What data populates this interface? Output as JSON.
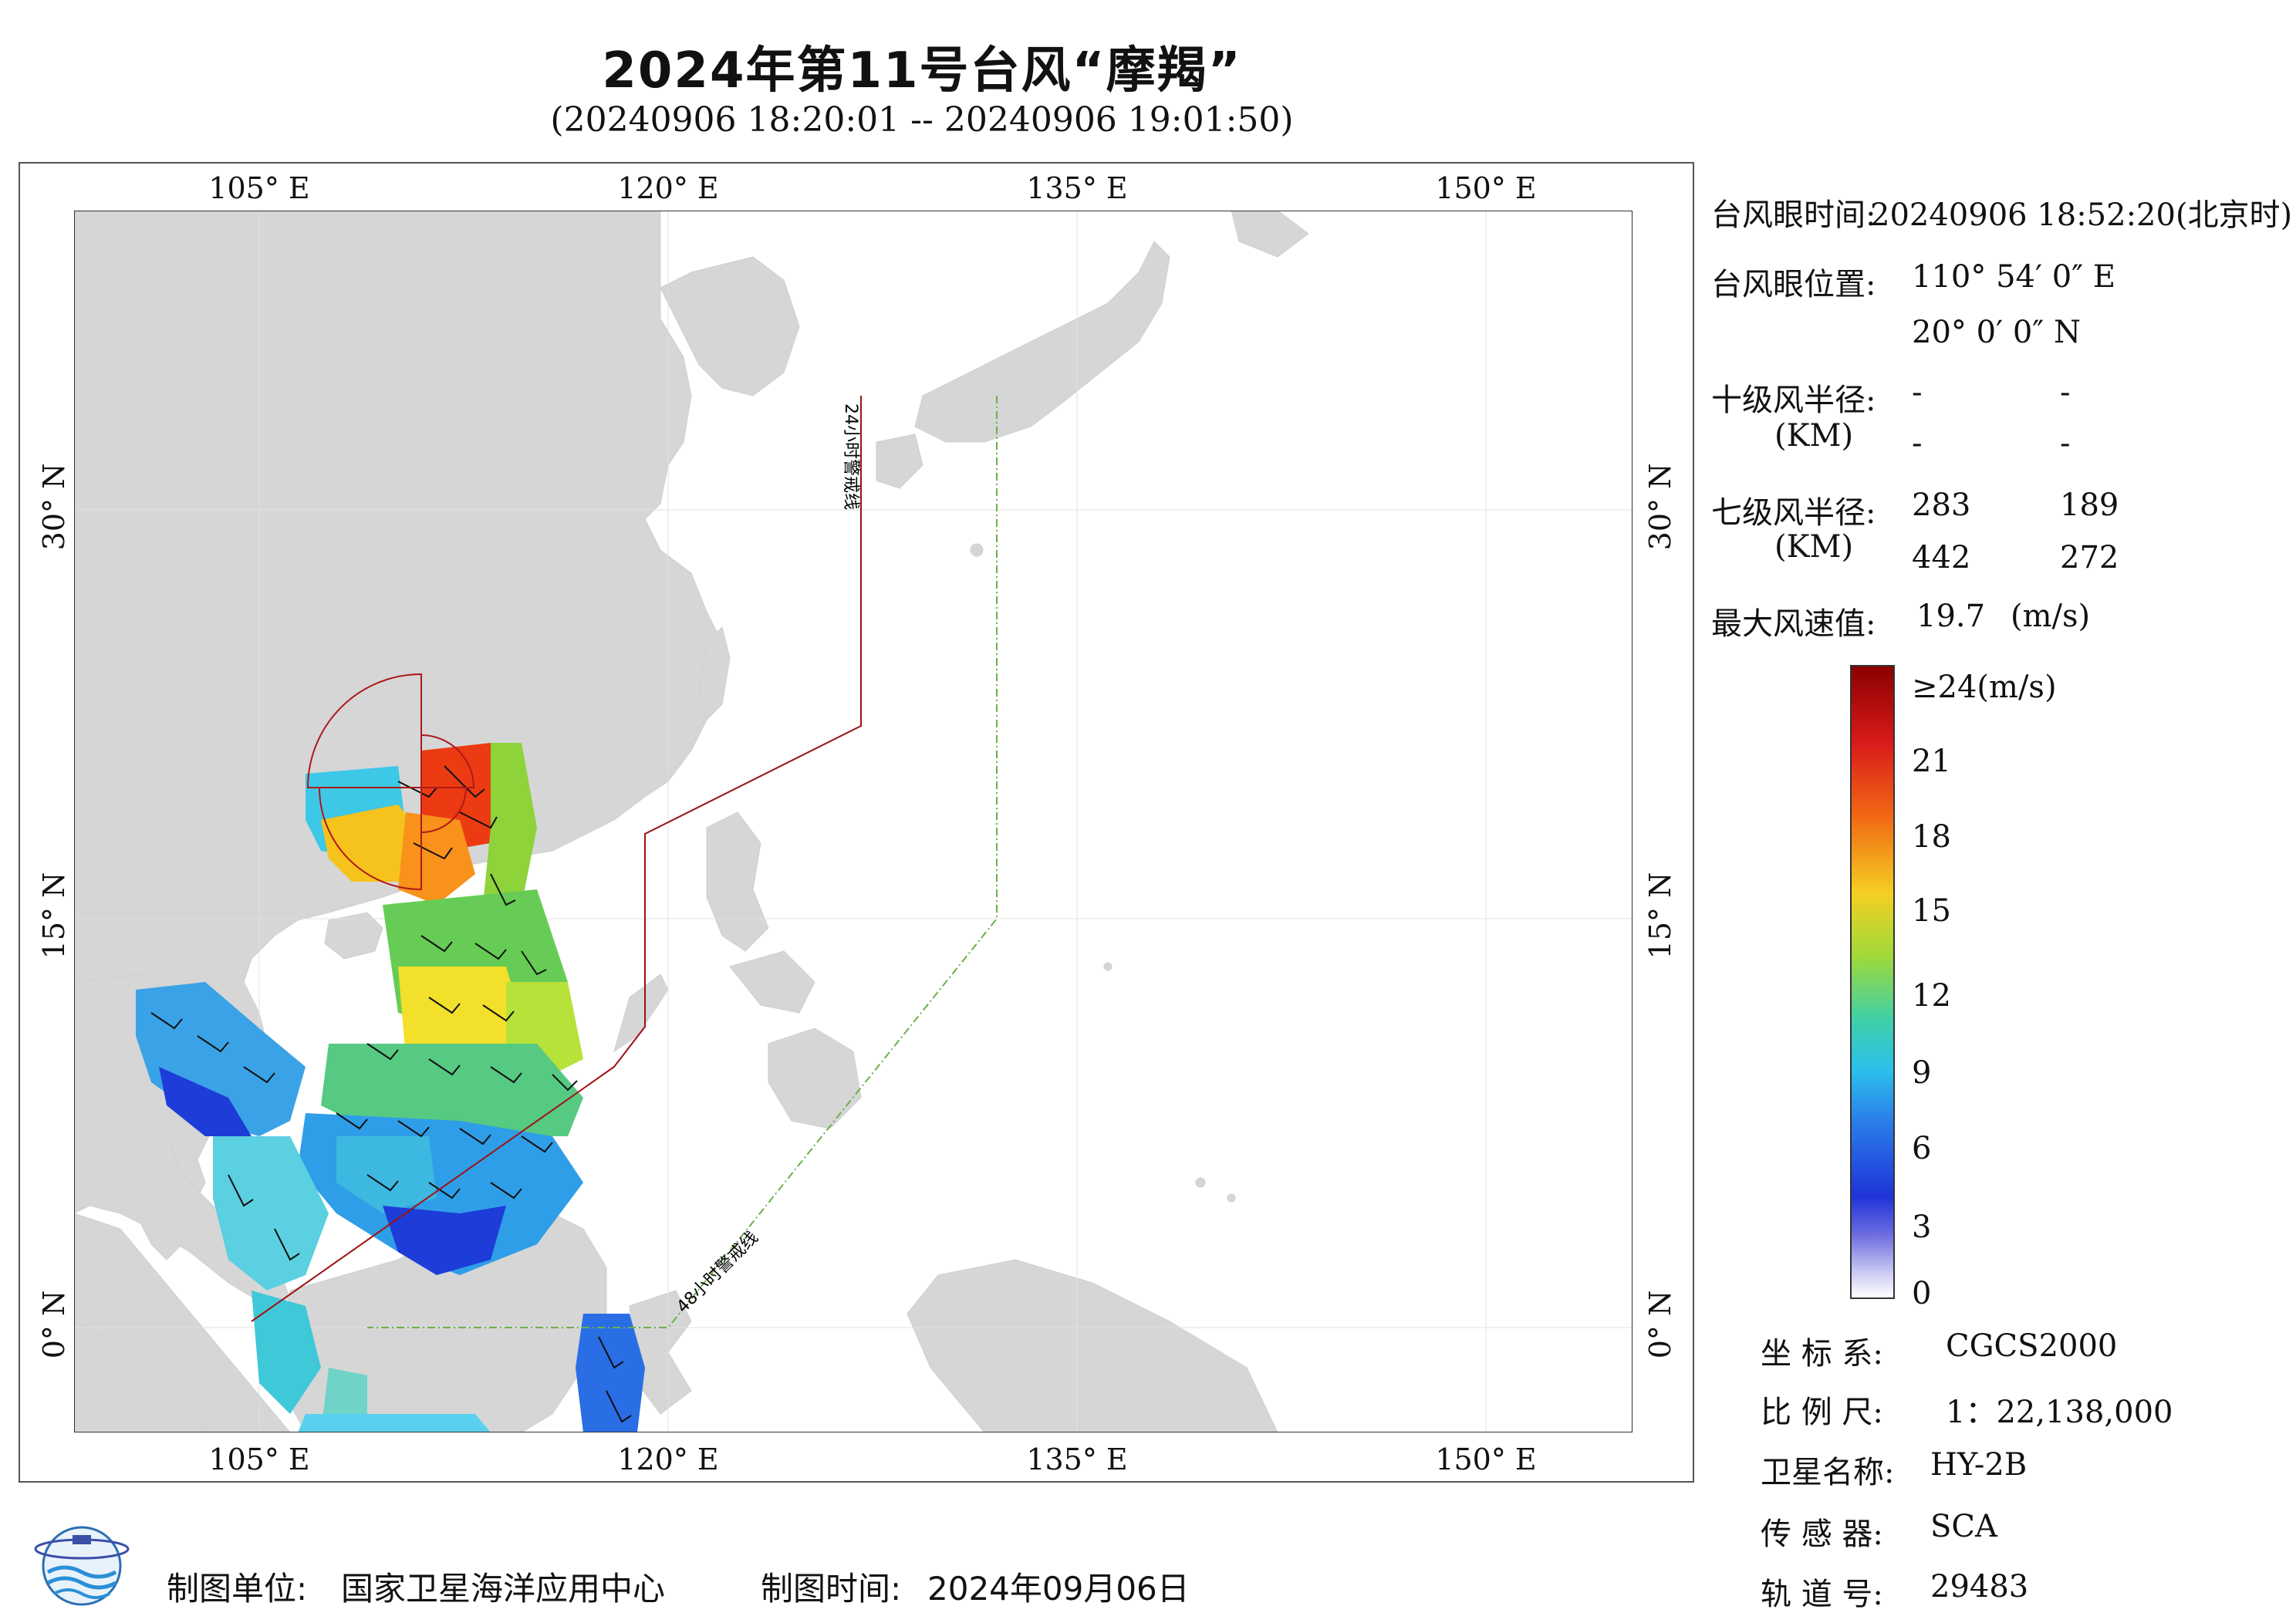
{
  "header": {
    "title": "2024年第11号台风“摩羯”",
    "subtitle": "(20240906 18:20:01 -- 20240906 19:01:50)"
  },
  "map": {
    "lon_ticks": [
      "105° E",
      "120° E",
      "135° E",
      "150° E"
    ],
    "lat_ticks": [
      "30° N",
      "15° N",
      "0° N"
    ],
    "line_24h_label": "24小时警戒线",
    "line_48h_label": "48小时警戒线",
    "colors": {
      "land": "#d6d6d6",
      "sea": "#ffffff",
      "line_24h": "#a01010",
      "line_48h": "#6ab04c"
    }
  },
  "info": {
    "eye_time_label": "台风眼时间:",
    "eye_time_value": "20240906 18:52:20(北京时)",
    "eye_pos_label": "台风眼位置:",
    "eye_lon": "110° 54′ 0″ E",
    "eye_lat": "20° 0′ 0″ N",
    "r10_label": "十级风半径:",
    "r10_unit": "(KM)",
    "r10_values": [
      "-",
      "-",
      "-",
      "-"
    ],
    "r7_label": "七级风半径:",
    "r7_unit": "(KM)",
    "r7_values": [
      "283",
      "189",
      "442",
      "272"
    ],
    "max_wind_label": "最大风速值:",
    "max_wind_value": "19.7",
    "max_wind_unit": "(m/s)"
  },
  "colorbar": {
    "labels": [
      "≥24(m/s)",
      "21",
      "18",
      "15",
      "12",
      "9",
      "6",
      "3",
      "0"
    ]
  },
  "meta": {
    "crs_label": "坐 标 系:",
    "crs_value": "CGCS2000",
    "scale_label": "比 例 尺:",
    "scale_value": "1：22,138,000",
    "satellite_label": "卫星名称:",
    "satellite_value": "HY-2B",
    "sensor_label": "传 感 器:",
    "sensor_value": "SCA",
    "orbit_label": "轨 道 号:",
    "orbit_value": "29483"
  },
  "footer": {
    "producer_label": "制图单位:",
    "producer_value": "国家卫星海洋应用中心",
    "date_label": "制图时间:",
    "date_value": "2024年09月06日"
  }
}
